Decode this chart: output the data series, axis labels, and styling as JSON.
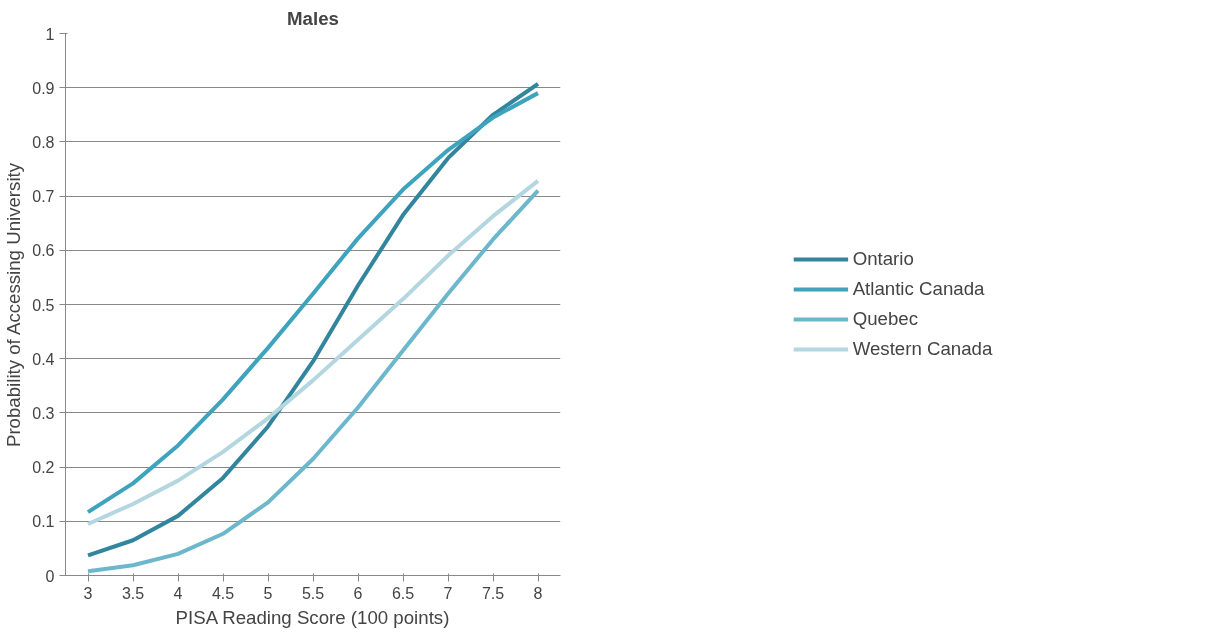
{
  "chart_data": {
    "type": "line",
    "title": "Males",
    "xlabel": "PISA Reading Score (100 points)",
    "ylabel": "Probability of Accessing University",
    "categories": [
      "3",
      "3.5",
      "4",
      "4.5",
      "5",
      "5.5",
      "6",
      "6.5",
      "7",
      "7.5",
      "8"
    ],
    "series": [
      {
        "name": "Ontario",
        "color": "#31859c",
        "values": [
          0.037,
          0.065,
          0.11,
          0.18,
          0.275,
          0.395,
          0.535,
          0.665,
          0.77,
          0.85,
          0.907
        ]
      },
      {
        "name": "Atlantic Canada",
        "color": "#3ea3bd",
        "values": [
          0.117,
          0.17,
          0.24,
          0.325,
          0.42,
          0.52,
          0.622,
          0.712,
          0.785,
          0.845,
          0.89
        ]
      },
      {
        "name": "Quebec",
        "color": "#6db7cc",
        "values": [
          0.008,
          0.019,
          0.04,
          0.077,
          0.135,
          0.215,
          0.31,
          0.415,
          0.52,
          0.62,
          0.71
        ]
      },
      {
        "name": "Western Canada",
        "color": "#b4d6e0",
        "values": [
          0.095,
          0.132,
          0.175,
          0.228,
          0.29,
          0.36,
          0.435,
          0.51,
          0.59,
          0.663,
          0.728
        ]
      }
    ],
    "ylim": [
      0,
      1
    ],
    "yticks": [
      0,
      0.1,
      0.2,
      0.3,
      0.4,
      0.5,
      0.6,
      0.7,
      0.8,
      0.9,
      1
    ],
    "grid": "y",
    "legend": "right",
    "marker": "none",
    "line_style": "solid"
  }
}
